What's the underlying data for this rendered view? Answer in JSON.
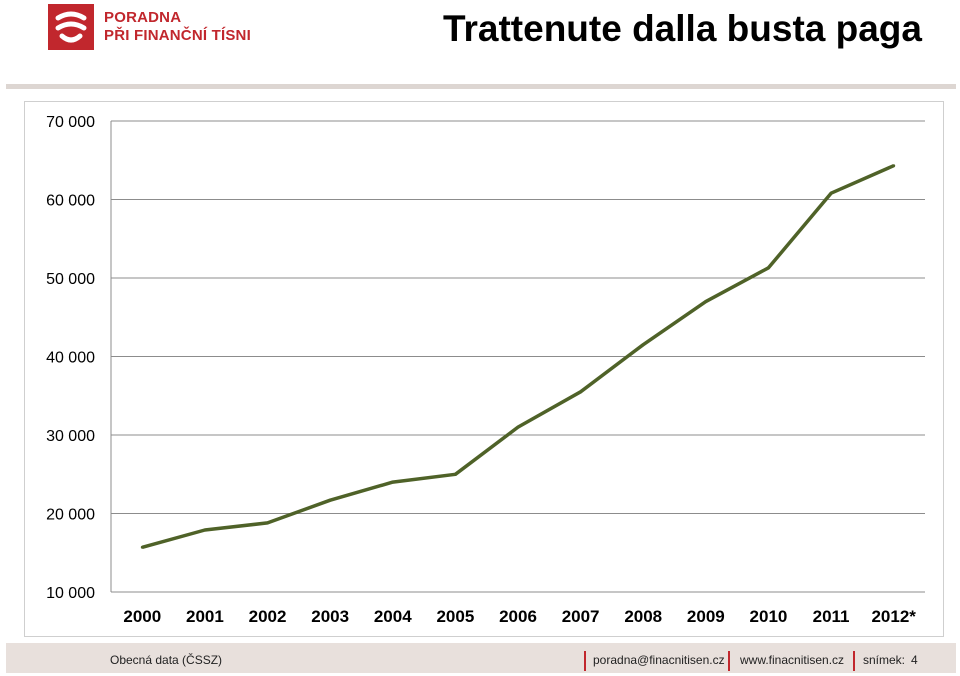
{
  "header": {
    "logo": {
      "line1": "PORADNA",
      "line2": "PŘI FINANČNÍ TÍSNI",
      "color": "#c1272d"
    },
    "title": "Trattenute dalla busta paga"
  },
  "chart_data": {
    "type": "line",
    "title": "",
    "xlabel": "",
    "ylabel": "",
    "categories": [
      "2000",
      "2001",
      "2002",
      "2003",
      "2004",
      "2005",
      "2006",
      "2007",
      "2008",
      "2009",
      "2010",
      "2011",
      "2012*"
    ],
    "series": [
      {
        "values": [
          15700,
          17900,
          18800,
          21700,
          24000,
          25000,
          31000,
          35500,
          41500,
          47000,
          51300,
          60800,
          64300
        ],
        "color": "#4f6228"
      }
    ],
    "ylim": [
      10000,
      70000
    ],
    "yticks": [
      10000,
      20000,
      30000,
      40000,
      50000,
      60000,
      70000
    ],
    "ytick_labels": [
      "10 000",
      "20 000",
      "30 000",
      "40 000",
      "50 000",
      "60 000",
      "70 000"
    ],
    "grid": true,
    "legend": "none"
  },
  "footer": {
    "source": "Obecná data  (ČSSZ)",
    "email": "poradna@finacnitisen.cz",
    "website": "www.finacnitisen.cz",
    "slide_label": "snímek:",
    "slide_number": "4"
  }
}
